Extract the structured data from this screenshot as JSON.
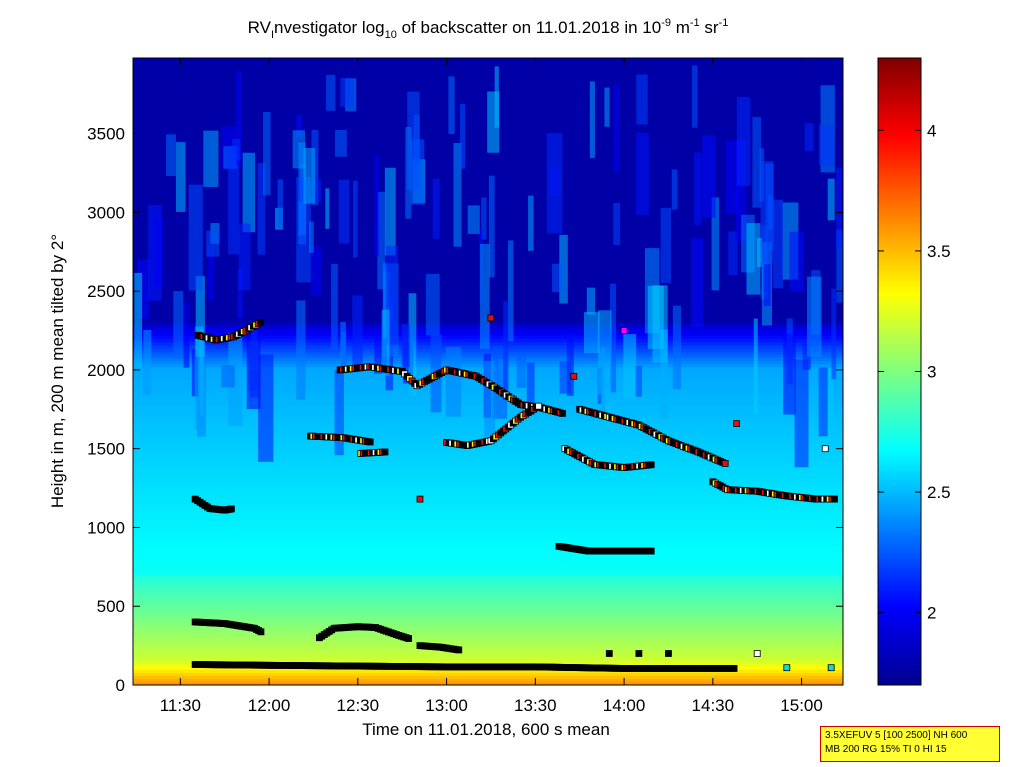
{
  "chart_data": {
    "type": "heatmap",
    "title_parts": {
      "t1": "RV",
      "t1_sub": "I",
      "t2": "nvestigator log",
      "t2_sub": "10",
      "t3": " of backscatter on 11.01.2018 in 10",
      "t3_sup": "-9",
      "t4": " m",
      "t4_sup": "-1",
      "t5": " sr",
      "t5_sup": "-1"
    },
    "xlabel": "Time on 11.01.2018, 600 s mean",
    "ylabel": "Height in m, 200 m mean tilted by 2°",
    "x_range": [
      "11:14",
      "15:14"
    ],
    "x_ticks": [
      "11:30",
      "12:00",
      "12:30",
      "13:00",
      "13:30",
      "14:00",
      "14:30",
      "15:00"
    ],
    "ylim": [
      0,
      3980
    ],
    "y_ticks": [
      0,
      500,
      1000,
      1500,
      2000,
      2500,
      3000,
      3500
    ],
    "colorbar": {
      "range": [
        1.7,
        4.3
      ],
      "ticks": [
        2,
        2.5,
        3,
        3.5,
        4
      ],
      "tick_labels": [
        "2",
        "2.5",
        "3",
        "3.5",
        "4"
      ],
      "colormap": "jet"
    },
    "field": {
      "upper_blue_above_m": 2300,
      "boundary_layer_top_m": 2000,
      "surface_value": 3.6,
      "mid_value": 2.7,
      "upper_value": 1.8
    },
    "markers": {
      "colors": {
        "black": "#000000",
        "white": "#ffffff",
        "red": "#e01010",
        "yellow": "#ffee00",
        "magenta": "#ff00ff",
        "cyan": "#00e0e0"
      },
      "series": [
        {
          "name": "surface",
          "points": [
            [
              "11:35",
              130
            ],
            [
              "12:00",
              125
            ],
            [
              "12:30",
              120
            ],
            [
              "13:00",
              115
            ],
            [
              "13:30",
              115
            ],
            [
              "14:00",
              105
            ],
            [
              "14:38",
              105
            ]
          ]
        },
        {
          "name": "low-a",
          "points": [
            [
              "11:35",
              400
            ],
            [
              "11:45",
              390
            ],
            [
              "11:55",
              360
            ],
            [
              "11:58",
              330
            ]
          ]
        },
        {
          "name": "low-b",
          "points": [
            [
              "12:17",
              300
            ],
            [
              "12:22",
              360
            ],
            [
              "12:30",
              370
            ],
            [
              "12:36",
              365
            ],
            [
              "12:43",
              320
            ],
            [
              "12:48",
              290
            ]
          ]
        },
        {
          "name": "low-c",
          "points": [
            [
              "12:51",
              250
            ],
            [
              "12:58",
              240
            ],
            [
              "13:05",
              220
            ]
          ]
        },
        {
          "name": "layer-1200",
          "points": [
            [
              "11:35",
              1180
            ],
            [
              "11:40",
              1120
            ],
            [
              "11:45",
              1110
            ],
            [
              "11:48",
              1120
            ]
          ]
        },
        {
          "name": "layer-1600",
          "points": [
            [
              "12:14",
              1580
            ],
            [
              "12:25",
              1570
            ],
            [
              "12:35",
              1540
            ]
          ]
        },
        {
          "name": "layer-1480",
          "points": [
            [
              "12:31",
              1470
            ],
            [
              "12:40",
              1480
            ]
          ]
        },
        {
          "name": "layer-870",
          "points": [
            [
              "13:38",
              880
            ],
            [
              "13:48",
              850
            ],
            [
              "14:00",
              850
            ],
            [
              "14:10",
              850
            ]
          ]
        },
        {
          "name": "bl-top-left",
          "points": [
            [
              "11:36",
              2220
            ],
            [
              "11:42",
              2190
            ],
            [
              "11:48",
              2210
            ],
            [
              "11:53",
              2260
            ],
            [
              "11:58",
              2310
            ]
          ]
        },
        {
          "name": "bl-top-mid",
          "points": [
            [
              "12:24",
              2000
            ],
            [
              "12:34",
              2020
            ],
            [
              "12:45",
              1990
            ],
            [
              "12:50",
              1900
            ],
            [
              "12:55",
              1950
            ],
            [
              "13:00",
              2000
            ],
            [
              "13:10",
              1960
            ],
            [
              "13:17",
              1880
            ],
            [
              "13:25",
              1780
            ],
            [
              "13:32",
              1760
            ],
            [
              "13:40",
              1720
            ]
          ]
        },
        {
          "name": "bl-1530",
          "points": [
            [
              "13:00",
              1540
            ],
            [
              "13:07",
              1520
            ],
            [
              "13:15",
              1550
            ],
            [
              "13:25",
              1700
            ],
            [
              "13:32",
              1780
            ]
          ]
        },
        {
          "name": "bl-1700",
          "points": [
            [
              "13:45",
              1750
            ],
            [
              "13:55",
              1700
            ],
            [
              "14:05",
              1650
            ],
            [
              "14:15",
              1550
            ],
            [
              "14:25",
              1480
            ],
            [
              "14:35",
              1400
            ]
          ]
        },
        {
          "name": "bl-1400",
          "points": [
            [
              "13:40",
              1500
            ],
            [
              "13:50",
              1400
            ],
            [
              "14:00",
              1380
            ],
            [
              "14:10",
              1400
            ]
          ]
        },
        {
          "name": "bl-1250",
          "points": [
            [
              "14:30",
              1290
            ],
            [
              "14:35",
              1240
            ],
            [
              "14:45",
              1230
            ],
            [
              "14:55",
              1200
            ],
            [
              "15:05",
              1180
            ],
            [
              "15:12",
              1180
            ]
          ]
        }
      ],
      "isolated": [
        [
          "13:15",
          2330,
          "red"
        ],
        [
          "13:43",
          1960,
          "red"
        ],
        [
          "14:00",
          2250,
          "magenta"
        ],
        [
          "14:38",
          1660,
          "red"
        ],
        [
          "12:51",
          1180,
          "red"
        ],
        [
          "15:08",
          1500,
          "white"
        ],
        [
          "14:45",
          200,
          "white"
        ],
        [
          "14:05",
          200,
          "black"
        ],
        [
          "14:15",
          200,
          "black"
        ],
        [
          "13:55",
          200,
          "black"
        ],
        [
          "15:10",
          110,
          "cyan"
        ],
        [
          "14:55",
          110,
          "cyan"
        ]
      ]
    }
  },
  "info_box": {
    "line1": "3.5XEFUV 5 [100 2500] NH 600",
    "line2": "MB 200 RG 15% TI 0 HI 15"
  }
}
